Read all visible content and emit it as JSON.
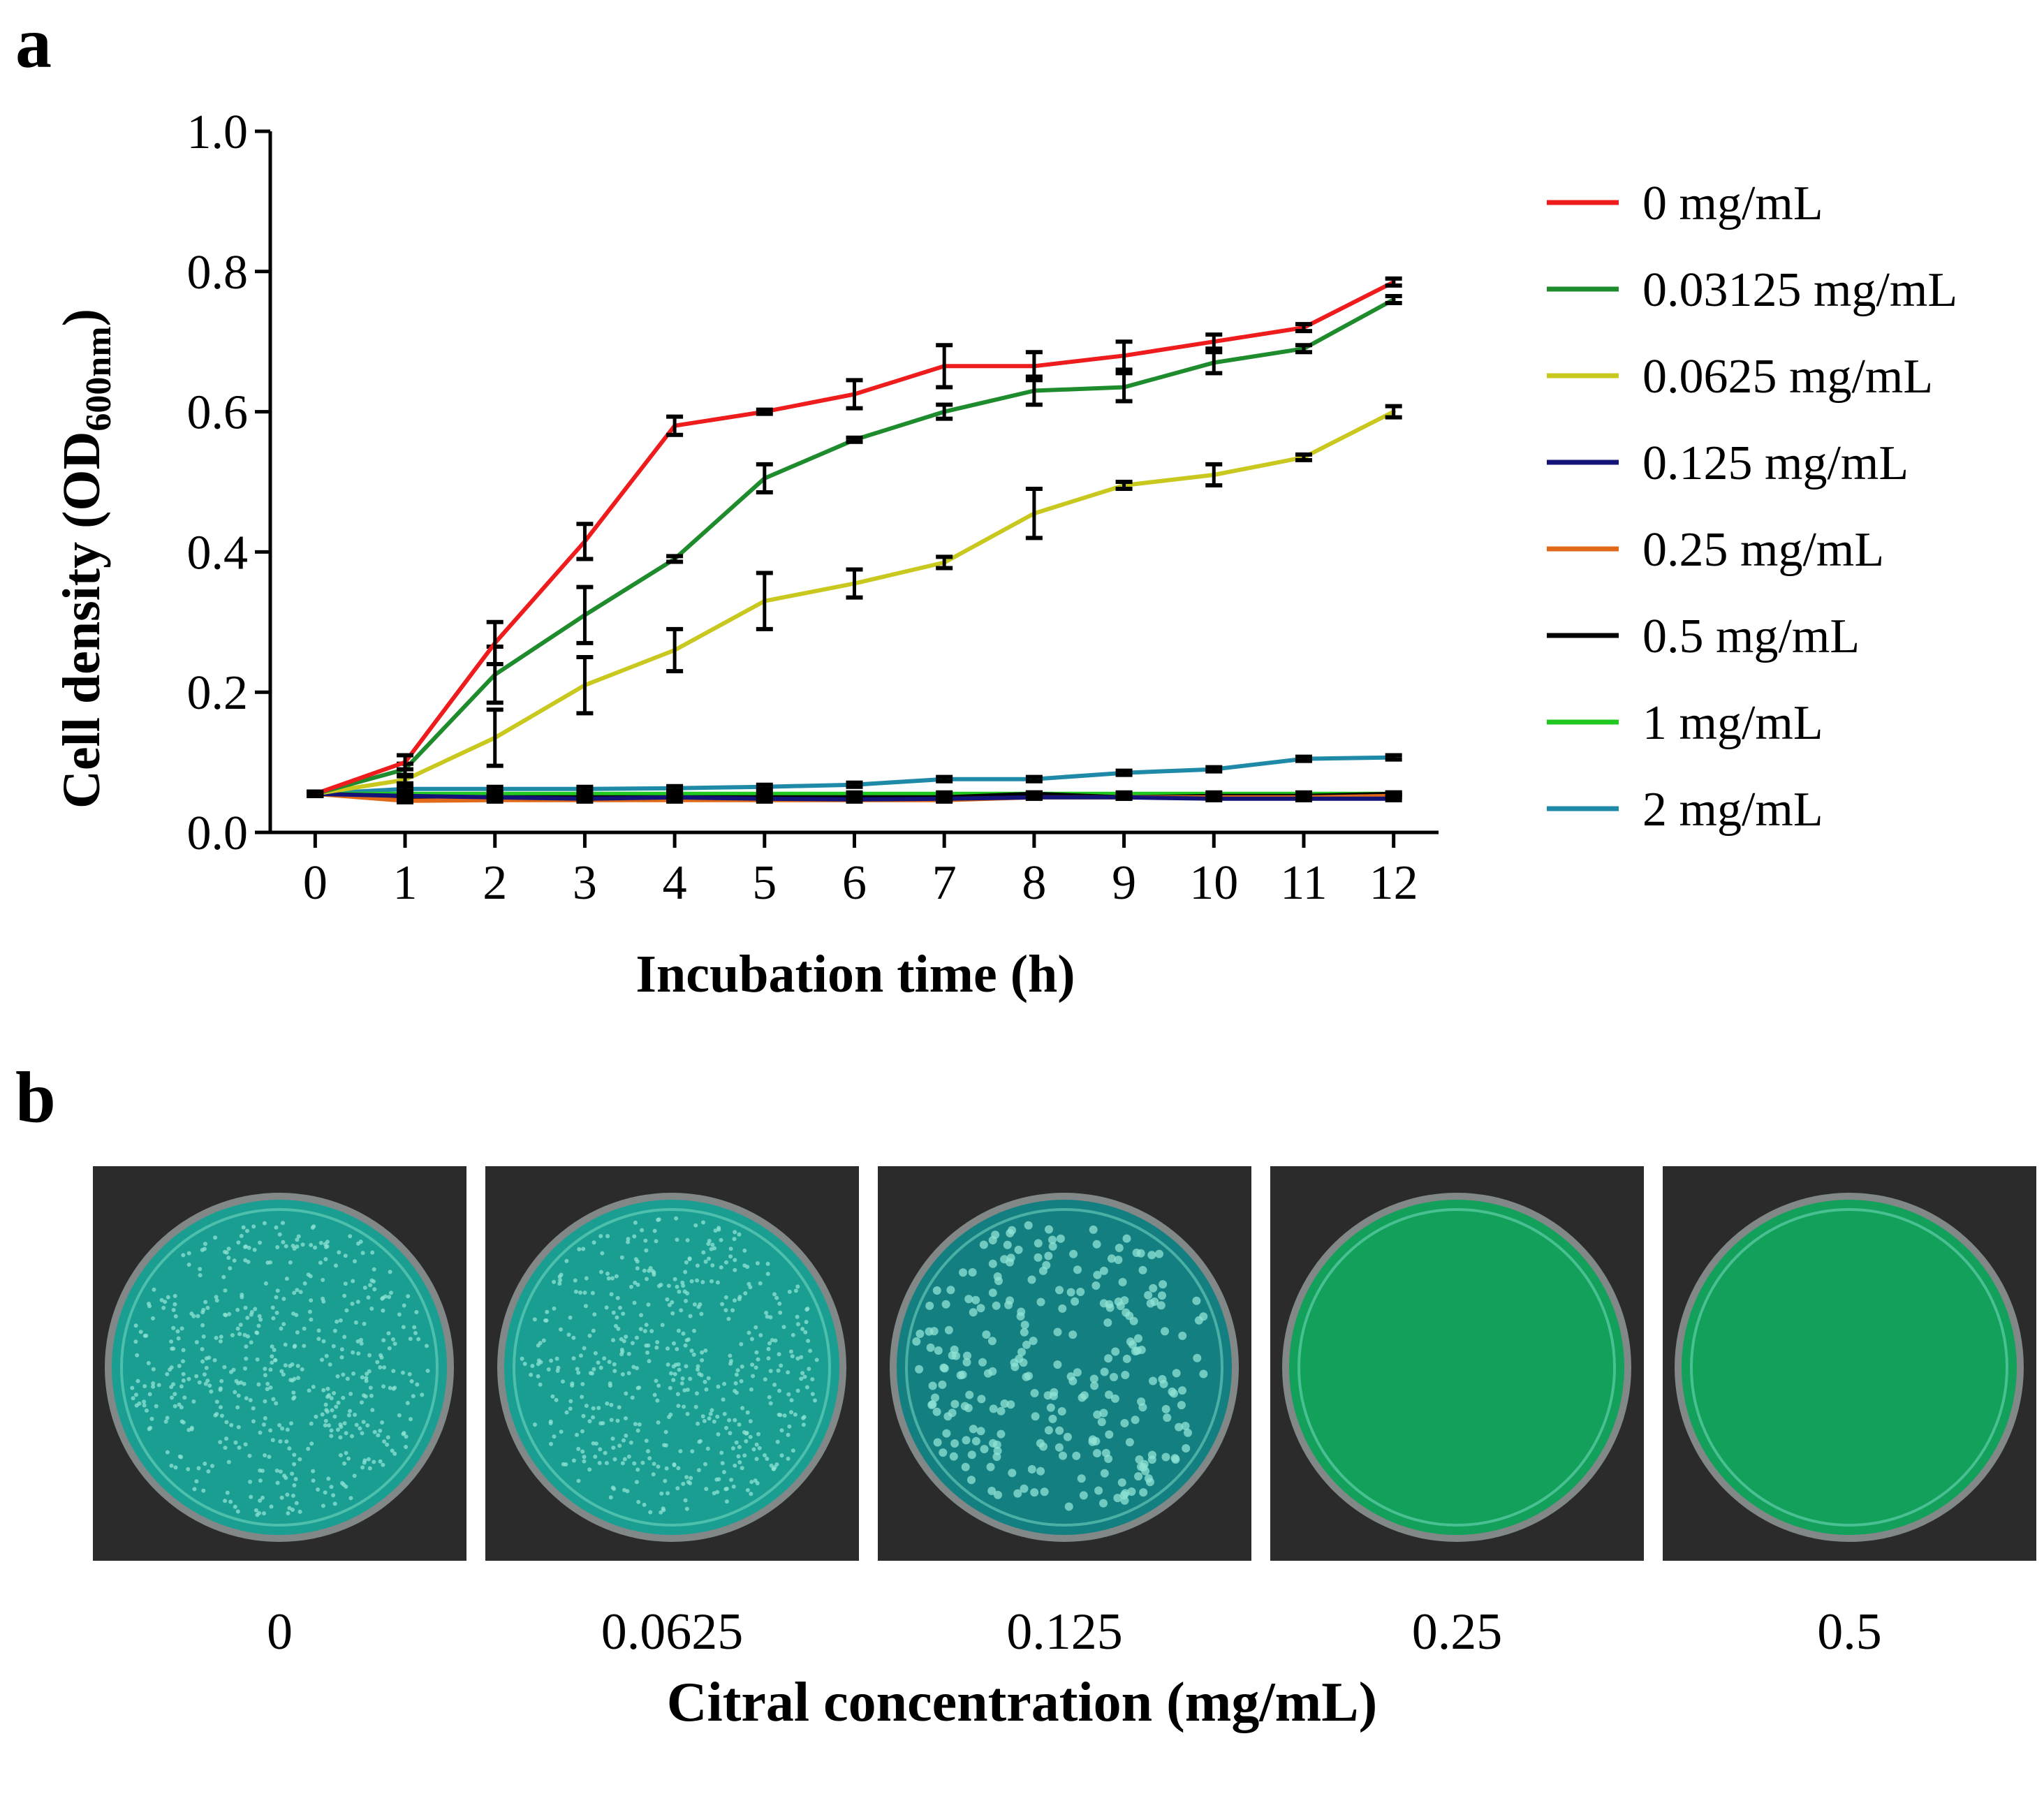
{
  "panels": {
    "a": "a",
    "b": "b"
  },
  "chart_data": {
    "type": "line",
    "xlabel": "Incubation time (h)",
    "ylabel_main": "Cell density (OD",
    "ylabel_sub": "600nm",
    "ylabel_close": ")",
    "x": [
      0,
      1,
      2,
      3,
      4,
      5,
      6,
      7,
      8,
      9,
      10,
      11,
      12
    ],
    "xlim": [
      -0.5,
      12.5
    ],
    "ylim": [
      0,
      1.0
    ],
    "yticks": [
      "0.0",
      "0.2",
      "0.4",
      "0.6",
      "0.8",
      "1.0"
    ],
    "legend_position": "right",
    "series": [
      {
        "name": "0 mg/mL",
        "color": "#ee1c1c",
        "values": [
          0.055,
          0.1,
          0.27,
          0.415,
          0.58,
          0.6,
          0.625,
          0.665,
          0.665,
          0.68,
          0.7,
          0.72,
          0.785
        ],
        "errors": [
          0.003,
          0.01,
          0.03,
          0.025,
          0.013,
          0.003,
          0.02,
          0.03,
          0.02,
          0.02,
          0.01,
          0.005,
          0.005
        ]
      },
      {
        "name": "0.03125 mg/mL",
        "color": "#1e8b2c",
        "values": [
          0.055,
          0.09,
          0.225,
          0.31,
          0.39,
          0.505,
          0.56,
          0.6,
          0.63,
          0.635,
          0.67,
          0.69,
          0.76
        ],
        "errors": [
          0.003,
          0.008,
          0.04,
          0.04,
          0.004,
          0.02,
          0.003,
          0.01,
          0.02,
          0.02,
          0.015,
          0.005,
          0.005
        ]
      },
      {
        "name": "0.0625 mg/mL",
        "color": "#c8c81e",
        "values": [
          0.055,
          0.075,
          0.135,
          0.21,
          0.26,
          0.33,
          0.355,
          0.385,
          0.455,
          0.495,
          0.51,
          0.535,
          0.6
        ],
        "errors": [
          0.003,
          0.005,
          0.04,
          0.04,
          0.03,
          0.04,
          0.02,
          0.008,
          0.035,
          0.005,
          0.015,
          0.004,
          0.008
        ]
      },
      {
        "name": "0.125 mg/mL",
        "color": "#141478",
        "values": [
          0.055,
          0.052,
          0.05,
          0.048,
          0.05,
          0.048,
          0.047,
          0.048,
          0.05,
          0.05,
          0.048,
          0.048,
          0.048
        ],
        "errors": [
          0.003,
          0.002,
          0.002,
          0.002,
          0.002,
          0.002,
          0.002,
          0.002,
          0.002,
          0.002,
          0.002,
          0.002,
          0.002
        ]
      },
      {
        "name": "0.25 mg/mL",
        "color": "#e06a1a",
        "values": [
          0.055,
          0.045,
          0.046,
          0.046,
          0.046,
          0.046,
          0.046,
          0.046,
          0.05,
          0.05,
          0.05,
          0.05,
          0.052
        ],
        "errors": [
          0.003,
          0.002,
          0.002,
          0.002,
          0.002,
          0.002,
          0.002,
          0.002,
          0.002,
          0.002,
          0.002,
          0.002,
          0.002
        ]
      },
      {
        "name": "0.5 mg/mL",
        "color": "#000000",
        "values": [
          0.055,
          0.05,
          0.05,
          0.05,
          0.05,
          0.05,
          0.05,
          0.05,
          0.055,
          0.05,
          0.052,
          0.052,
          0.055
        ],
        "errors": [
          0.003,
          0.002,
          0.002,
          0.002,
          0.002,
          0.002,
          0.002,
          0.002,
          0.002,
          0.002,
          0.002,
          0.002,
          0.002
        ]
      },
      {
        "name": "1 mg/mL",
        "color": "#22c822",
        "values": [
          0.055,
          0.055,
          0.055,
          0.055,
          0.055,
          0.055,
          0.055,
          0.055,
          0.055,
          0.055,
          0.055,
          0.055,
          0.055
        ],
        "errors": [
          0.003,
          0.002,
          0.002,
          0.002,
          0.002,
          0.002,
          0.002,
          0.002,
          0.002,
          0.002,
          0.002,
          0.002,
          0.002
        ]
      },
      {
        "name": "2 mg/mL",
        "color": "#1f8aa8",
        "values": [
          0.055,
          0.062,
          0.062,
          0.062,
          0.063,
          0.065,
          0.068,
          0.076,
          0.076,
          0.085,
          0.09,
          0.105,
          0.107
        ],
        "errors": [
          0.003,
          0.003,
          0.003,
          0.003,
          0.003,
          0.003,
          0.003,
          0.003,
          0.003,
          0.003,
          0.003,
          0.003,
          0.003
        ]
      }
    ]
  },
  "panel_b": {
    "plates": [
      {
        "label": "0",
        "growth": "dense"
      },
      {
        "label": "0.0625",
        "growth": "dense"
      },
      {
        "label": "0.125",
        "growth": "colonies"
      },
      {
        "label": "0.25",
        "growth": "none"
      },
      {
        "label": "0.5",
        "growth": "none"
      }
    ],
    "xlabel": "Citral concentration (mg/mL)",
    "colors": {
      "agar_dense": "#1a9e92",
      "agar_colonies": "#147f80",
      "agar_clear": "#12a05a",
      "background": "#2b2b2b"
    }
  }
}
